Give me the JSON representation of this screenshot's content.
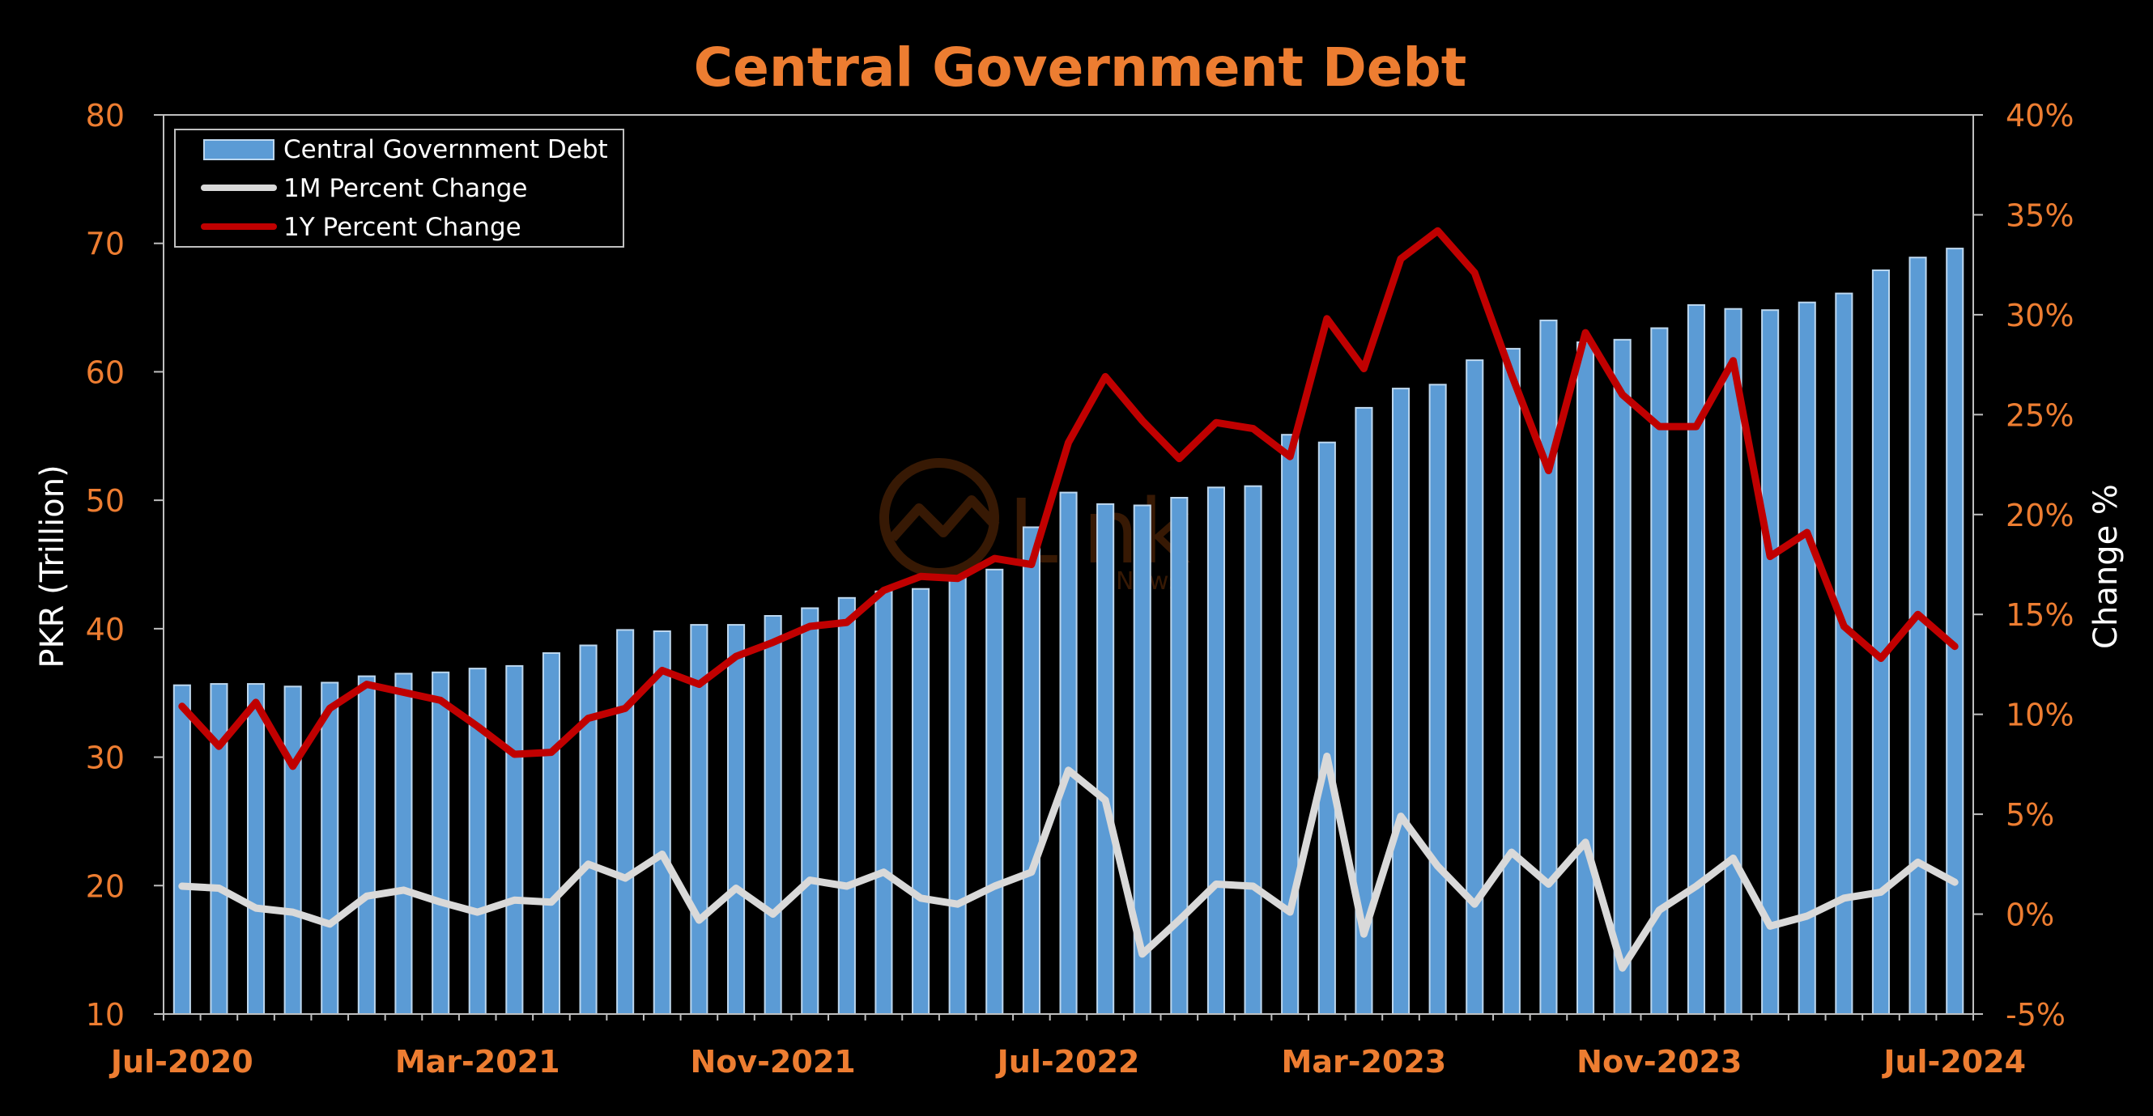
{
  "chart_data": {
    "type": "bar",
    "title": "Central Government Debt",
    "ylabel_left": "PKR (Trillion)",
    "ylabel_right": "Change %",
    "y_left_range": [
      10,
      80
    ],
    "y_left_ticks": [
      "10",
      "20",
      "30",
      "40",
      "50",
      "60",
      "70",
      "80"
    ],
    "y_right_range": [
      -5,
      40
    ],
    "y_right_ticks": [
      "-5%",
      "0%",
      "5%",
      "10%",
      "15%",
      "20%",
      "25%",
      "30%",
      "35%",
      "40%"
    ],
    "x_tick_labels": [
      "Jul-2020",
      "Mar-2021",
      "Nov-2021",
      "Jul-2022",
      "Mar-2023",
      "Nov-2023",
      "Jul-2024"
    ],
    "x_tick_indices": [
      0,
      8,
      16,
      24,
      32,
      40,
      48
    ],
    "categories": [
      "Jul-2020",
      "Aug-2020",
      "Sep-2020",
      "Oct-2020",
      "Nov-2020",
      "Dec-2020",
      "Jan-2021",
      "Feb-2021",
      "Mar-2021",
      "Apr-2021",
      "May-2021",
      "Jun-2021",
      "Jul-2021",
      "Aug-2021",
      "Sep-2021",
      "Oct-2021",
      "Nov-2021",
      "Dec-2021",
      "Jan-2022",
      "Feb-2022",
      "Mar-2022",
      "Apr-2022",
      "May-2022",
      "Jun-2022",
      "Jul-2022",
      "Aug-2022",
      "Sep-2022",
      "Oct-2022",
      "Nov-2022",
      "Dec-2022",
      "Jan-2023",
      "Feb-2023",
      "Mar-2023",
      "Apr-2023",
      "May-2023",
      "Jun-2023",
      "Jul-2023",
      "Aug-2023",
      "Sep-2023",
      "Oct-2023",
      "Nov-2023",
      "Dec-2023",
      "Jan-2024",
      "Feb-2024",
      "Mar-2024",
      "Apr-2024",
      "May-2024",
      "Jun-2024",
      "Jul-2024"
    ],
    "series": [
      {
        "name": "Central Government Debt",
        "kind": "bar",
        "axis": "left",
        "color": "#5b9bd5",
        "values": [
          35.6,
          35.7,
          35.7,
          35.5,
          35.8,
          36.3,
          36.5,
          36.6,
          36.9,
          37.1,
          38.1,
          38.7,
          39.9,
          39.8,
          40.3,
          40.3,
          41.0,
          41.6,
          42.4,
          42.9,
          43.1,
          44.1,
          44.6,
          47.9,
          50.6,
          49.7,
          49.6,
          50.2,
          51.0,
          51.1,
          55.1,
          54.5,
          57.2,
          58.7,
          59.0,
          60.9,
          61.8,
          64.0,
          62.3,
          62.5,
          63.4,
          65.2,
          64.9,
          64.8,
          65.4,
          66.1,
          67.9,
          68.9,
          69.6
        ]
      },
      {
        "name": "1M Percent Change",
        "kind": "line",
        "axis": "right",
        "color": "#d9d9d9",
        "values": [
          1.4,
          1.3,
          0.3,
          0.1,
          -0.5,
          0.9,
          1.2,
          0.6,
          0.1,
          0.7,
          0.6,
          2.5,
          1.8,
          3.0,
          -0.3,
          1.3,
          0.0,
          1.7,
          1.4,
          2.1,
          0.8,
          0.5,
          1.4,
          2.1,
          7.2,
          5.7,
          -2.0,
          -0.3,
          1.5,
          1.4,
          0.1,
          7.9,
          -1.0,
          4.9,
          2.4,
          0.5,
          3.1,
          1.5,
          3.6,
          -2.7,
          0.2,
          1.4,
          2.8,
          -0.6,
          -0.1,
          0.8,
          1.1,
          2.6,
          1.6
        ]
      },
      {
        "name": "1Y Percent Change",
        "kind": "line",
        "axis": "right",
        "color": "#c00000",
        "values": [
          10.4,
          8.4,
          10.6,
          7.4,
          10.3,
          11.5,
          11.1,
          10.7,
          9.4,
          8.0,
          8.1,
          9.8,
          10.3,
          12.2,
          11.5,
          12.9,
          13.6,
          14.4,
          14.6,
          16.2,
          16.9,
          16.8,
          17.8,
          17.5,
          23.6,
          26.9,
          24.7,
          22.8,
          24.6,
          24.3,
          22.9,
          29.8,
          27.3,
          32.8,
          34.2,
          32.1,
          27.0,
          22.2,
          29.1,
          26.0,
          24.4,
          24.4,
          27.7,
          17.9,
          19.1,
          14.4,
          12.8,
          15.0,
          13.4
        ]
      }
    ],
    "legend": {
      "placement": "top-left",
      "entries": [
        "Central Government Debt",
        "1M Percent Change",
        "1Y Percent Change"
      ]
    },
    "watermark": "Link News",
    "grid": false
  }
}
